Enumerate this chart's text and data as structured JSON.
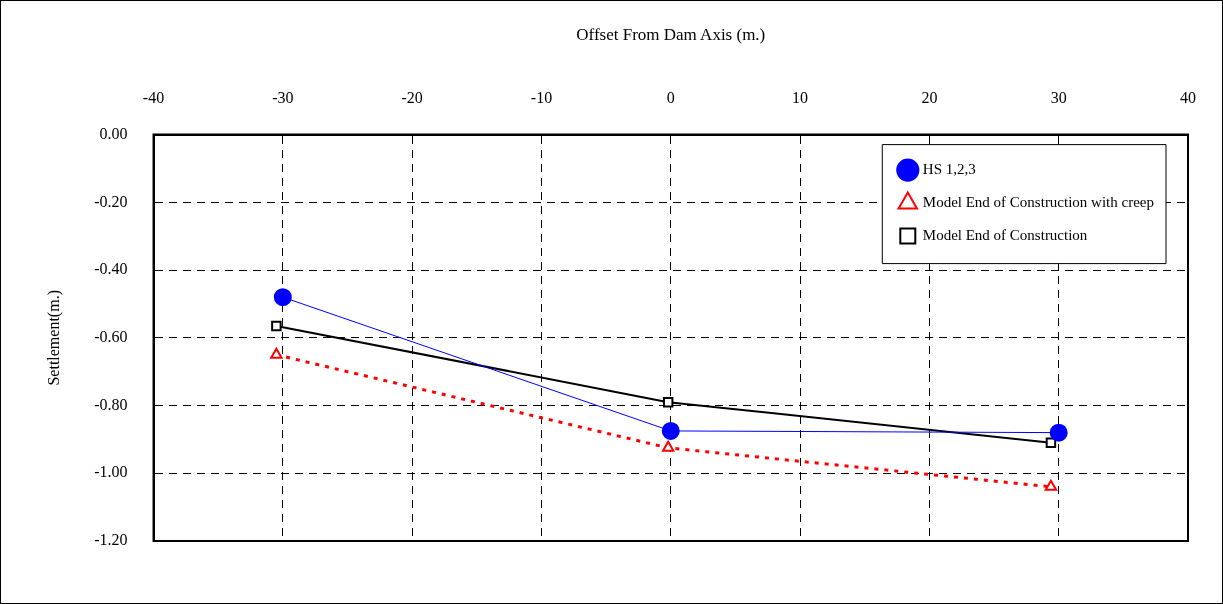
{
  "chart_data": {
    "type": "line",
    "xlabel": "Offset From Dam Axis (m.)",
    "ylabel": "Settlement(m.)",
    "xlim": [
      -40,
      40
    ],
    "xticks": [
      -40,
      -30,
      -20,
      -10,
      0,
      10,
      20,
      30,
      40
    ],
    "ylim": [
      -1.2,
      0
    ],
    "yticks": [
      {
        "value": 0,
        "label": "0.00"
      },
      {
        "value": -0.2,
        "label": "-0.20"
      },
      {
        "value": -0.4,
        "label": "-0.40"
      },
      {
        "value": -0.6,
        "label": "-0.60"
      },
      {
        "value": -0.8,
        "label": "-0.80"
      },
      {
        "value": -1.0,
        "label": "-1.00"
      },
      {
        "value": -1.2,
        "label": "-1.20"
      }
    ],
    "grid": true,
    "legend": "top right",
    "series": [
      {
        "name": "HS 1,2,3",
        "color": "#0000ff",
        "marker": "circle",
        "line_style": "solid",
        "x": [
          -30,
          0,
          30
        ],
        "values": [
          -0.48,
          -0.875,
          -0.88
        ]
      },
      {
        "name": "Model End of Construction with creep",
        "color": "#ff0000",
        "marker": "triangle",
        "line_style": "dotted",
        "x": [
          -30.5,
          -0.2,
          29.4
        ],
        "values": [
          -0.65,
          -0.925,
          -1.04
        ]
      },
      {
        "name": "Model End of Construction",
        "color": "#000000",
        "marker": "square",
        "line_style": "solid",
        "x": [
          -30.5,
          -0.2,
          29.4
        ],
        "values": [
          -0.565,
          -0.79,
          -0.91
        ]
      }
    ]
  }
}
